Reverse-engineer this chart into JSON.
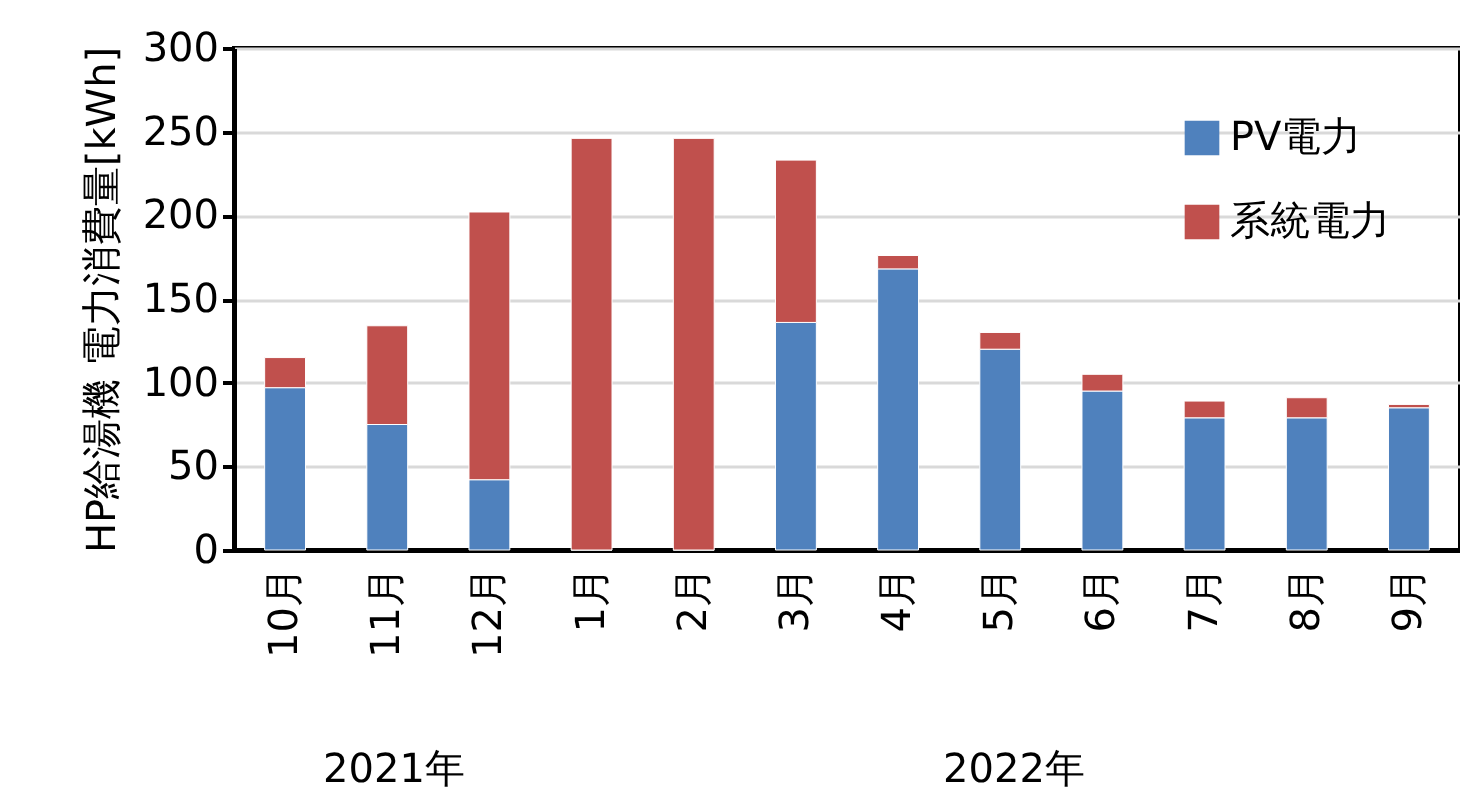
{
  "chart_data": {
    "type": "bar",
    "stacked": true,
    "ylabel": "HP給湯機 電力消費量[kWh]",
    "categories": [
      "10月",
      "11月",
      "12月",
      "1月",
      "2月",
      "3月",
      "4月",
      "5月",
      "6月",
      "7月",
      "8月",
      "9月"
    ],
    "series": [
      {
        "name": "PV電力",
        "color": "#4f81bd",
        "values": [
          97,
          75,
          42,
          0,
          0,
          136,
          168,
          120,
          95,
          79,
          79,
          85
        ]
      },
      {
        "name": "系統電力",
        "color": "#c0504d",
        "values": [
          18,
          59,
          160,
          246,
          246,
          97,
          8,
          10,
          10,
          10,
          12,
          2
        ]
      }
    ],
    "ylim": [
      0,
      300
    ],
    "yticks": [
      0,
      50,
      100,
      150,
      200,
      250,
      300
    ],
    "grid": "y",
    "legend": "top right",
    "annotations": [
      "2021年",
      "2022年"
    ]
  }
}
